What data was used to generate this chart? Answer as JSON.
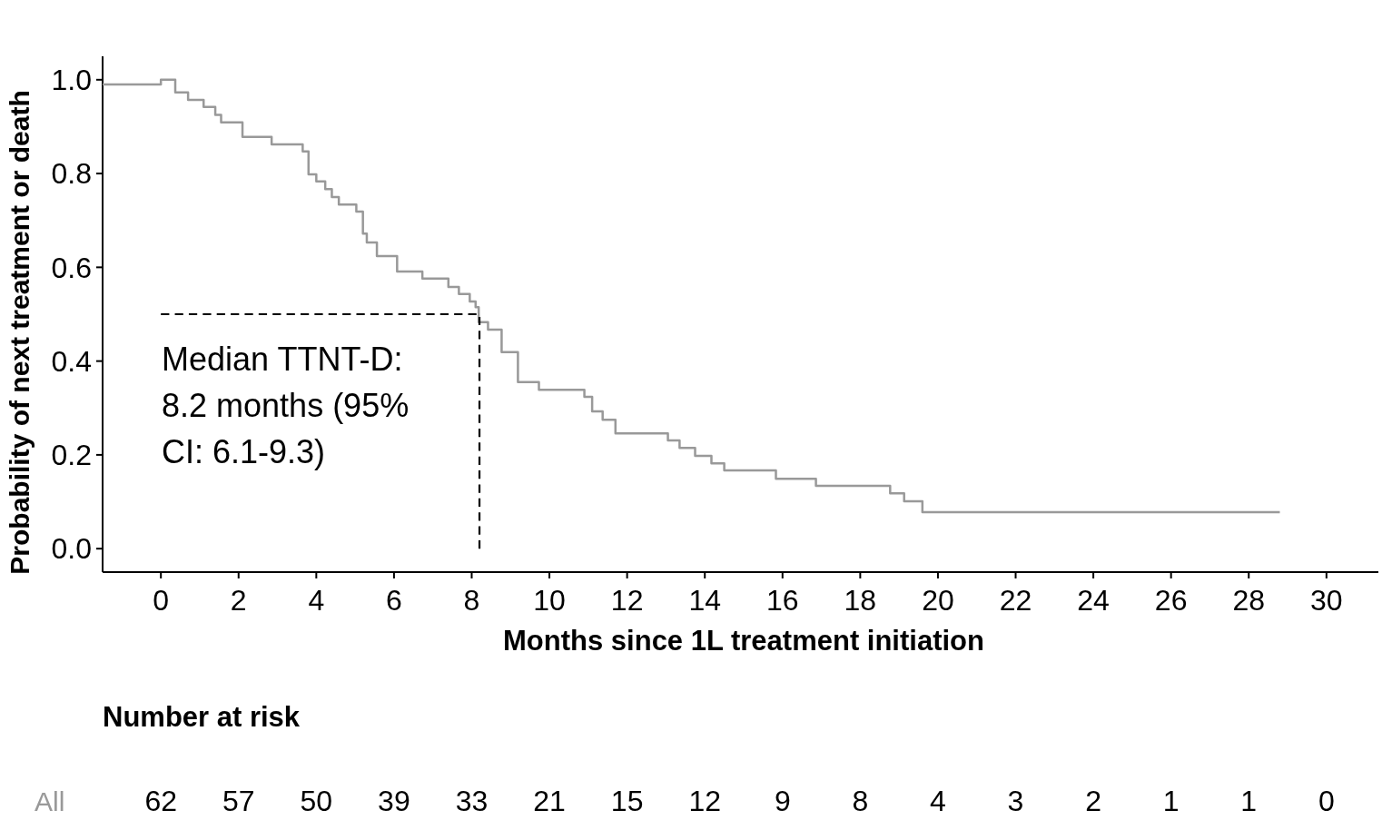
{
  "chart_data": [
    {
      "type": "step",
      "ylabel": "Probability of next treatment or death",
      "xlabel": "Months since 1L treatment initiation",
      "xlim": [
        -1.5,
        31.5
      ],
      "ylim": [
        -0.05,
        1.05
      ],
      "xticks": [
        0,
        2,
        4,
        6,
        8,
        10,
        12,
        14,
        16,
        18,
        20,
        22,
        24,
        26,
        28,
        30
      ],
      "yticks": [
        {
          "value": 0,
          "label": "0.0"
        },
        0.2,
        0.4,
        0.6,
        0.8,
        {
          "value": 1,
          "label": "1.0"
        }
      ],
      "grid": false,
      "series": [
        {
          "color": "#999999",
          "x": [
            -1.5,
            0,
            0.37,
            0.7,
            1.1,
            1.4,
            1.55,
            2.1,
            2.85,
            3.65,
            3.8,
            4.0,
            4.23,
            4.4,
            4.58,
            5.03,
            5.2,
            5.3,
            5.56,
            6.08,
            6.73,
            7.4,
            7.67,
            7.95,
            8.1,
            8.18,
            8.42,
            8.77,
            9.19,
            9.73,
            10.9,
            11.1,
            11.37,
            11.7,
            13.05,
            13.35,
            13.75,
            14.17,
            14.5,
            15.83,
            16.86,
            18.77,
            19.13,
            19.6,
            28.8
          ],
          "values": [
            0.99,
            1.0,
            0.973,
            0.957,
            0.942,
            0.925,
            0.909,
            0.878,
            0.862,
            0.847,
            0.798,
            0.783,
            0.767,
            0.75,
            0.734,
            0.719,
            0.672,
            0.653,
            0.624,
            0.591,
            0.576,
            0.558,
            0.543,
            0.527,
            0.515,
            0.483,
            0.467,
            0.419,
            0.355,
            0.339,
            0.324,
            0.293,
            0.275,
            0.246,
            0.231,
            0.215,
            0.198,
            0.182,
            0.167,
            0.149,
            0.134,
            0.118,
            0.101,
            0.078,
            0.078
          ]
        },
        {
          "type": "line",
          "line_style": "dashed",
          "color": "#000000",
          "x": [
            0,
            8.2,
            8.2
          ],
          "values": [
            0.5,
            0.5,
            0
          ]
        }
      ],
      "annotations": [
        {
          "text": "Median TTNT-D:\n8.2 months (95%\nCI: 6.1-9.3)",
          "x": 8.2,
          "y": 0.5
        }
      ]
    },
    {
      "type": "other",
      "title": "Number at risk",
      "data_labels": true,
      "categories": [
        null,
        null,
        null,
        null,
        null,
        null,
        null,
        null,
        null,
        null,
        null,
        null,
        null,
        null,
        null,
        null
      ],
      "series": [
        {
          "name": "All",
          "color": "#999999",
          "values": [
            62,
            57,
            50,
            39,
            33,
            21,
            15,
            12,
            9,
            8,
            4,
            3,
            2,
            1,
            1,
            0
          ]
        }
      ]
    }
  ]
}
